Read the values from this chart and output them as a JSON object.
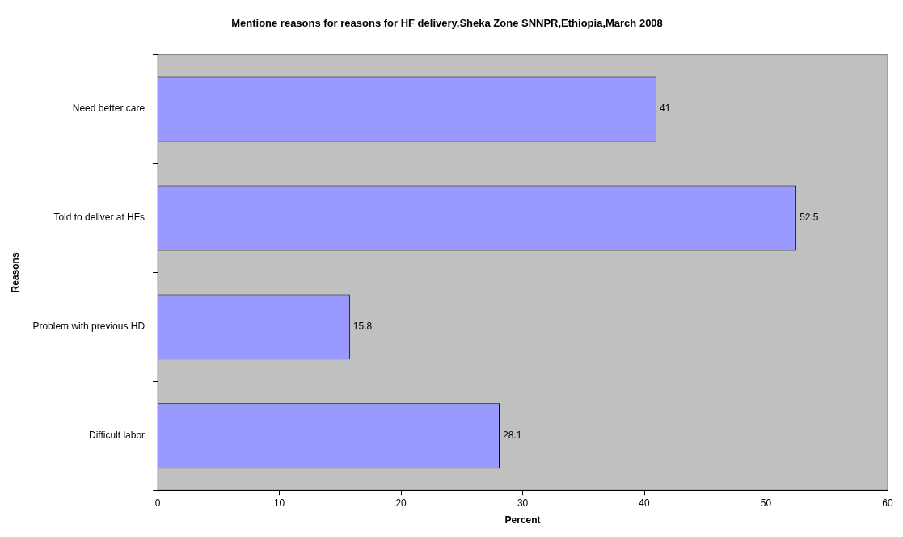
{
  "chart_data": {
    "type": "bar",
    "orientation": "horizontal",
    "title": "Mentione reasons for reasons for HF delivery,Sheka Zone SNNPR,Ethiopia,March 2008",
    "xlabel": "Percent",
    "ylabel": "Reasons",
    "categories": [
      "Need better care",
      "Told to deliver at HFs",
      "Problem with previous HD",
      "Difficult labor"
    ],
    "values": [
      41,
      52.5,
      15.8,
      28.1
    ],
    "color": "#9999ff",
    "xlim": [
      0,
      60
    ],
    "xticks": [
      0,
      10,
      20,
      30,
      40,
      50,
      60
    ],
    "grid": false,
    "legend": false,
    "data_labels": true
  }
}
